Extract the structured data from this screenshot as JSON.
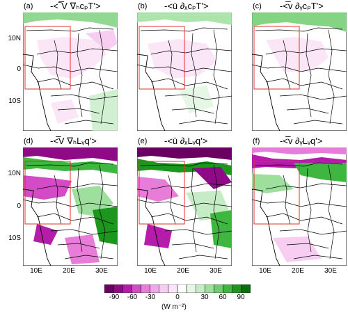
{
  "panels": [
    {
      "label": "(a)",
      "title": "-<‾̅V ∇ₕcₚT'>"
    },
    {
      "label": "(b)",
      "title": "-<ū ∂ₓcₚT'>"
    },
    {
      "label": "(c)",
      "title": "-<̅v ∂ᵧcₚT'>"
    },
    {
      "label": "(d)",
      "title": "-<̅V ∇ₕLᵥq'>"
    },
    {
      "label": "(e)",
      "title": "-<ū ∂ₓLᵥq'>"
    },
    {
      "label": "(f)",
      "title": "-<̅v ∂ᵧLᵥq'>"
    }
  ],
  "lat_ticks": [
    "10N",
    "0",
    "10S"
  ],
  "lon_ticks": [
    "10E",
    "20E",
    "30E"
  ],
  "colorbar": {
    "ticks": [
      "-90",
      "-60",
      "-30",
      "0",
      "30",
      "60",
      "90"
    ],
    "units": "(W m⁻²)",
    "colors": [
      "#6a0060",
      "#8e0a86",
      "#b51ca9",
      "#d34bc6",
      "#e77dd9",
      "#f1a8e8",
      "#f7cdf1",
      "#fbe6f8",
      "#ffffff",
      "#e6f7e6",
      "#c5ecc5",
      "#9edf9e",
      "#6fcd6f",
      "#3fb63f",
      "#1c961c",
      "#0a6e0a"
    ]
  }
}
